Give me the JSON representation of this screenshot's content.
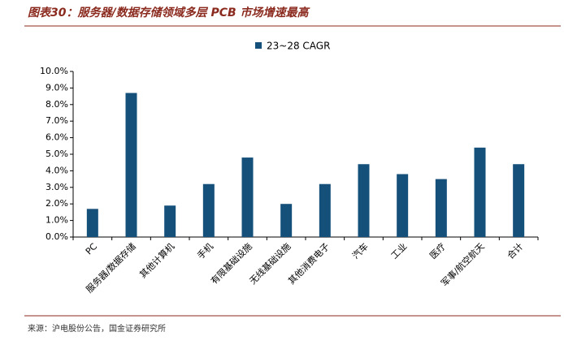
{
  "chart_data": {
    "type": "bar",
    "title": "图表30：服务器/数据存储领域多层 PCB 市场增速最高",
    "categories": [
      "PC",
      "服务器/数据存储",
      "其他计算机",
      "手机",
      "有限基础设施",
      "无线基础设施",
      "其他消费电子",
      "汽车",
      "工业",
      "医疗",
      "军事/航空航天",
      "合计"
    ],
    "series": [
      {
        "name": "23~28 CAGR",
        "color": "#15507b",
        "values": [
          1.7,
          8.7,
          1.9,
          3.2,
          4.8,
          2.0,
          3.2,
          4.4,
          3.8,
          3.5,
          5.4,
          4.4
        ]
      }
    ],
    "ylim": [
      0,
      10
    ],
    "yticks": [
      {
        "value": 0,
        "label": "0.0%"
      },
      {
        "value": 1,
        "label": "1.0%"
      },
      {
        "value": 2,
        "label": "2.0%"
      },
      {
        "value": 3,
        "label": "3.0%"
      },
      {
        "value": 4,
        "label": "4.0%"
      },
      {
        "value": 5,
        "label": "5.0%"
      },
      {
        "value": 6,
        "label": "6.0%"
      },
      {
        "value": 7,
        "label": "7.0%"
      },
      {
        "value": 8,
        "label": "8.0%"
      },
      {
        "value": 9,
        "label": "9.0%"
      },
      {
        "value": 10,
        "label": "10.0%"
      }
    ],
    "grid": false,
    "legend": "top",
    "source": "来源：沪电股份公告，国金证券研究所"
  }
}
